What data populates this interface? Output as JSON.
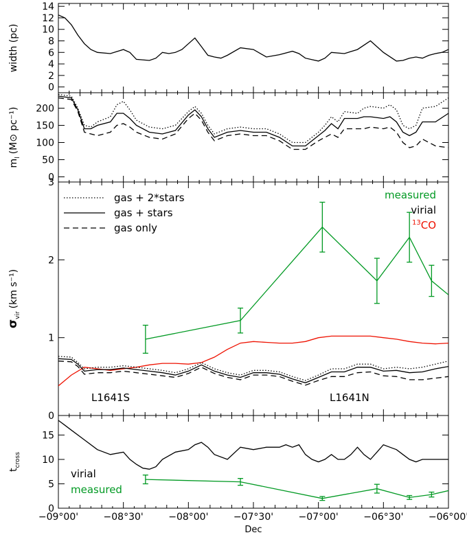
{
  "chart_data": [
    {
      "type": "line",
      "ylabel": "width (pc)",
      "ylim": [
        -1,
        14.5
      ],
      "yticks": [
        "0",
        "2",
        "4",
        "6",
        "8",
        "10",
        "12",
        "14"
      ],
      "xlim": [
        -9.0,
        -6.0
      ],
      "series": [
        {
          "color": "#000000",
          "dash": "solid",
          "x": [
            -9.0,
            -8.95,
            -8.9,
            -8.85,
            -8.8,
            -8.75,
            -8.7,
            -8.6,
            -8.5,
            -8.45,
            -8.4,
            -8.3,
            -8.25,
            -8.2,
            -8.15,
            -8.1,
            -8.05,
            -8.0,
            -7.95,
            -7.9,
            -7.85,
            -7.8,
            -7.75,
            -7.7,
            -7.6,
            -7.5,
            -7.4,
            -7.3,
            -7.2,
            -7.15,
            -7.1,
            -7.0,
            -6.95,
            -6.9,
            -6.8,
            -6.7,
            -6.6,
            -6.5,
            -6.4,
            -6.35,
            -6.3,
            -6.25,
            -6.2,
            -6.15,
            -6.1,
            -6.05,
            -6.0
          ],
          "y": [
            12.5,
            12.0,
            10.8,
            9.0,
            7.5,
            6.5,
            6.0,
            5.8,
            6.5,
            6.0,
            4.8,
            4.6,
            5.0,
            6.0,
            5.8,
            6.0,
            6.5,
            7.5,
            8.5,
            7.0,
            5.5,
            5.2,
            5.0,
            5.5,
            6.8,
            6.5,
            5.2,
            5.6,
            6.2,
            5.8,
            5.0,
            4.5,
            5.0,
            6.0,
            5.8,
            6.5,
            8.0,
            6.0,
            4.5,
            4.6,
            5.0,
            5.2,
            5.0,
            5.5,
            5.8,
            6.0,
            6.5
          ]
        }
      ]
    },
    {
      "type": "line",
      "ylabel": "m",
      "ylabel_sub": "l",
      "ylabel_unit": "(M⊙ pc⁻¹)",
      "ylim": [
        -15,
        245
      ],
      "yticks": [
        "0",
        "50",
        "100",
        "150",
        "200"
      ],
      "xlim": [
        -9.0,
        -6.0
      ],
      "series": [
        {
          "name": "gas + 2*stars",
          "dash": "dotted",
          "color": "#000000",
          "x": [
            -9.0,
            -8.9,
            -8.85,
            -8.8,
            -8.75,
            -8.7,
            -8.6,
            -8.55,
            -8.5,
            -8.45,
            -8.4,
            -8.3,
            -8.2,
            -8.1,
            -8.0,
            -7.95,
            -7.9,
            -7.85,
            -7.8,
            -7.7,
            -7.6,
            -7.5,
            -7.4,
            -7.3,
            -7.2,
            -7.1,
            -7.0,
            -6.95,
            -6.9,
            -6.85,
            -6.8,
            -6.7,
            -6.65,
            -6.6,
            -6.5,
            -6.45,
            -6.4,
            -6.35,
            -6.3,
            -6.25,
            -6.2,
            -6.1,
            -6.0
          ],
          "y": [
            240,
            235,
            200,
            150,
            145,
            160,
            175,
            210,
            220,
            195,
            165,
            145,
            140,
            150,
            190,
            205,
            185,
            150,
            125,
            140,
            145,
            140,
            140,
            125,
            100,
            100,
            130,
            150,
            175,
            160,
            190,
            185,
            200,
            205,
            200,
            210,
            195,
            150,
            140,
            150,
            200,
            205,
            230
          ]
        },
        {
          "name": "gas + stars",
          "dash": "solid",
          "color": "#000000",
          "x": [
            -9.0,
            -8.9,
            -8.85,
            -8.8,
            -8.75,
            -8.7,
            -8.6,
            -8.55,
            -8.5,
            -8.45,
            -8.4,
            -8.3,
            -8.2,
            -8.1,
            -8.0,
            -7.95,
            -7.9,
            -7.85,
            -7.8,
            -7.7,
            -7.6,
            -7.5,
            -7.4,
            -7.3,
            -7.2,
            -7.1,
            -7.0,
            -6.95,
            -6.9,
            -6.85,
            -6.8,
            -6.7,
            -6.65,
            -6.6,
            -6.5,
            -6.45,
            -6.4,
            -6.35,
            -6.3,
            -6.25,
            -6.2,
            -6.1,
            -6.0
          ],
          "y": [
            235,
            230,
            195,
            140,
            140,
            150,
            160,
            185,
            185,
            170,
            150,
            130,
            125,
            135,
            180,
            195,
            175,
            140,
            115,
            130,
            135,
            130,
            130,
            115,
            90,
            90,
            120,
            135,
            155,
            140,
            170,
            170,
            175,
            175,
            170,
            175,
            160,
            130,
            120,
            130,
            160,
            160,
            185
          ]
        },
        {
          "name": "gas only",
          "dash": "dashed",
          "color": "#000000",
          "x": [
            -9.0,
            -8.9,
            -8.85,
            -8.8,
            -8.75,
            -8.7,
            -8.6,
            -8.55,
            -8.5,
            -8.45,
            -8.4,
            -8.3,
            -8.2,
            -8.1,
            -8.0,
            -7.95,
            -7.9,
            -7.85,
            -7.8,
            -7.7,
            -7.6,
            -7.5,
            -7.4,
            -7.3,
            -7.2,
            -7.1,
            -7.0,
            -6.95,
            -6.9,
            -6.85,
            -6.8,
            -6.7,
            -6.65,
            -6.6,
            -6.5,
            -6.45,
            -6.4,
            -6.35,
            -6.3,
            -6.25,
            -6.2,
            -6.1,
            -6.0
          ],
          "y": [
            230,
            225,
            190,
            130,
            125,
            120,
            130,
            150,
            155,
            145,
            130,
            115,
            110,
            125,
            170,
            185,
            165,
            130,
            105,
            120,
            125,
            120,
            120,
            105,
            80,
            80,
            105,
            115,
            125,
            115,
            140,
            140,
            140,
            145,
            140,
            145,
            130,
            100,
            85,
            90,
            110,
            90,
            85
          ]
        }
      ]
    },
    {
      "type": "line",
      "ylabel": "σ",
      "ylabel_sub": "vir",
      "ylabel_unit": "(km s⁻¹)",
      "ylim": [
        0,
        3
      ],
      "yticks": [
        "0",
        "1",
        "2",
        "3"
      ],
      "xlim": [
        -9.0,
        -6.0
      ],
      "legend": [
        {
          "label": "gas + 2*stars",
          "dash": "dotted"
        },
        {
          "label": "gas + stars",
          "dash": "solid"
        },
        {
          "label": "gas only",
          "dash": "dashed"
        }
      ],
      "legend_right": [
        {
          "label": "measured",
          "color": "#009922"
        },
        {
          "label": "virial",
          "color": "#000000"
        },
        {
          "label_sup": "13",
          "label": "CO",
          "color": "#ee1100"
        }
      ],
      "annotations": [
        "L1641S",
        "L1641N"
      ],
      "series": [
        {
          "name": "measured",
          "color": "#009922",
          "dash": "solid",
          "errorbars": true,
          "x": [
            -8.33,
            -7.6,
            -6.97,
            -6.55,
            -6.3,
            -6.13,
            -6.0
          ],
          "y": [
            0.98,
            1.22,
            2.42,
            1.73,
            2.29,
            1.73,
            1.55
          ],
          "err": [
            0.18,
            0.16,
            0.32,
            0.29,
            0.32,
            0.2,
            0
          ]
        },
        {
          "name": "13CO",
          "color": "#ee1100",
          "dash": "solid",
          "x": [
            -9.0,
            -8.9,
            -8.8,
            -8.7,
            -8.6,
            -8.5,
            -8.4,
            -8.3,
            -8.2,
            -8.1,
            -8.0,
            -7.9,
            -7.8,
            -7.7,
            -7.6,
            -7.5,
            -7.4,
            -7.3,
            -7.2,
            -7.1,
            -7.0,
            -6.9,
            -6.8,
            -6.7,
            -6.6,
            -6.5,
            -6.4,
            -6.3,
            -6.2,
            -6.1,
            -6.0
          ],
          "y": [
            0.38,
            0.52,
            0.62,
            0.6,
            0.58,
            0.6,
            0.62,
            0.65,
            0.67,
            0.67,
            0.66,
            0.68,
            0.75,
            0.85,
            0.93,
            0.95,
            0.94,
            0.93,
            0.93,
            0.95,
            1.0,
            1.02,
            1.02,
            1.02,
            1.02,
            1.0,
            0.98,
            0.95,
            0.93,
            0.92,
            0.93
          ]
        },
        {
          "name": "gas + 2*stars",
          "color": "#000000",
          "dash": "dotted",
          "x": [
            -9.0,
            -8.9,
            -8.85,
            -8.8,
            -8.7,
            -8.6,
            -8.5,
            -8.4,
            -8.3,
            -8.2,
            -8.1,
            -8.0,
            -7.9,
            -7.8,
            -7.7,
            -7.6,
            -7.5,
            -7.4,
            -7.3,
            -7.2,
            -7.1,
            -7.0,
            -6.9,
            -6.8,
            -6.7,
            -6.6,
            -6.5,
            -6.4,
            -6.3,
            -6.2,
            -6.1,
            -6.0
          ],
          "y": [
            0.76,
            0.75,
            0.68,
            0.6,
            0.62,
            0.62,
            0.64,
            0.62,
            0.6,
            0.58,
            0.55,
            0.6,
            0.68,
            0.6,
            0.55,
            0.52,
            0.58,
            0.58,
            0.56,
            0.5,
            0.45,
            0.52,
            0.6,
            0.6,
            0.66,
            0.66,
            0.6,
            0.62,
            0.6,
            0.62,
            0.66,
            0.7
          ]
        },
        {
          "name": "gas + stars",
          "color": "#000000",
          "dash": "solid",
          "x": [
            -9.0,
            -8.9,
            -8.85,
            -8.8,
            -8.7,
            -8.6,
            -8.5,
            -8.4,
            -8.3,
            -8.2,
            -8.1,
            -8.0,
            -7.9,
            -7.8,
            -7.7,
            -7.6,
            -7.5,
            -7.4,
            -7.3,
            -7.2,
            -7.1,
            -7.0,
            -6.9,
            -6.8,
            -6.7,
            -6.6,
            -6.5,
            -6.4,
            -6.3,
            -6.2,
            -6.1,
            -6.0
          ],
          "y": [
            0.73,
            0.72,
            0.66,
            0.57,
            0.59,
            0.59,
            0.61,
            0.59,
            0.57,
            0.55,
            0.52,
            0.57,
            0.65,
            0.57,
            0.52,
            0.49,
            0.55,
            0.55,
            0.53,
            0.47,
            0.42,
            0.49,
            0.56,
            0.56,
            0.62,
            0.62,
            0.57,
            0.58,
            0.55,
            0.56,
            0.6,
            0.63
          ]
        },
        {
          "name": "gas only",
          "color": "#000000",
          "dash": "dashed",
          "x": [
            -9.0,
            -8.9,
            -8.85,
            -8.8,
            -8.7,
            -8.6,
            -8.5,
            -8.4,
            -8.3,
            -8.2,
            -8.1,
            -8.0,
            -7.9,
            -7.8,
            -7.7,
            -7.6,
            -7.5,
            -7.4,
            -7.3,
            -7.2,
            -7.1,
            -7.0,
            -6.9,
            -6.8,
            -6.7,
            -6.6,
            -6.5,
            -6.4,
            -6.3,
            -6.2,
            -6.1,
            -6.0
          ],
          "y": [
            0.7,
            0.69,
            0.63,
            0.53,
            0.55,
            0.55,
            0.57,
            0.55,
            0.53,
            0.51,
            0.49,
            0.54,
            0.62,
            0.54,
            0.49,
            0.46,
            0.52,
            0.52,
            0.5,
            0.44,
            0.39,
            0.45,
            0.5,
            0.5,
            0.55,
            0.56,
            0.51,
            0.5,
            0.46,
            0.46,
            0.48,
            0.5
          ]
        }
      ]
    },
    {
      "type": "line",
      "ylabel": "t",
      "ylabel_sub": "cross",
      "ylim": [
        0,
        19
      ],
      "yticks": [
        "0",
        "5",
        "10",
        "15"
      ],
      "xlim": [
        -9.0,
        -6.0
      ],
      "xlabel": "Dec",
      "xticks": [
        -9.0,
        -8.5,
        -8.0,
        -7.5,
        -7.0,
        -6.5,
        -6.0
      ],
      "xticklabels": [
        "−09°00'",
        "−08°30'",
        "−08°00'",
        "−07°30'",
        "−07°00'",
        "−06°30'",
        "−06°00'"
      ],
      "legend": [
        {
          "label": "virial",
          "color": "#000000"
        },
        {
          "label": "measured",
          "color": "#009922"
        }
      ],
      "series": [
        {
          "name": "virial",
          "color": "#000000",
          "dash": "solid",
          "x": [
            -9.0,
            -8.95,
            -8.9,
            -8.8,
            -8.7,
            -8.6,
            -8.5,
            -8.45,
            -8.4,
            -8.35,
            -8.3,
            -8.25,
            -8.2,
            -8.1,
            -8.0,
            -7.95,
            -7.9,
            -7.85,
            -7.8,
            -7.7,
            -7.6,
            -7.5,
            -7.4,
            -7.3,
            -7.25,
            -7.2,
            -7.15,
            -7.1,
            -7.05,
            -7.0,
            -6.95,
            -6.9,
            -6.85,
            -6.8,
            -6.75,
            -6.7,
            -6.65,
            -6.6,
            -6.55,
            -6.5,
            -6.45,
            -6.4,
            -6.35,
            -6.3,
            -6.25,
            -6.2,
            -6.15,
            -6.1,
            -6.05,
            -6.0
          ],
          "y": [
            18,
            17,
            16,
            14,
            12,
            11,
            11.5,
            10,
            9,
            8.2,
            8,
            8.5,
            10,
            11.5,
            12,
            13,
            13.5,
            12.5,
            11,
            10,
            12.5,
            12,
            12.5,
            12.5,
            13,
            12.5,
            13,
            11,
            10,
            9.5,
            10,
            11,
            10,
            10,
            11,
            12.5,
            11,
            10,
            11.5,
            13,
            12.5,
            12,
            11,
            10,
            9.5,
            10,
            10,
            10,
            10,
            10
          ]
        },
        {
          "name": "measured",
          "color": "#009922",
          "dash": "solid",
          "errorbars": true,
          "x": [
            -8.33,
            -7.6,
            -6.97,
            -6.55,
            -6.3,
            -6.13,
            -6.0
          ],
          "y": [
            5.9,
            5.4,
            2.0,
            4.0,
            2.2,
            2.8,
            3.6
          ],
          "err": [
            0.9,
            0.7,
            0.4,
            0.9,
            0.4,
            0.5,
            0
          ]
        }
      ]
    }
  ]
}
